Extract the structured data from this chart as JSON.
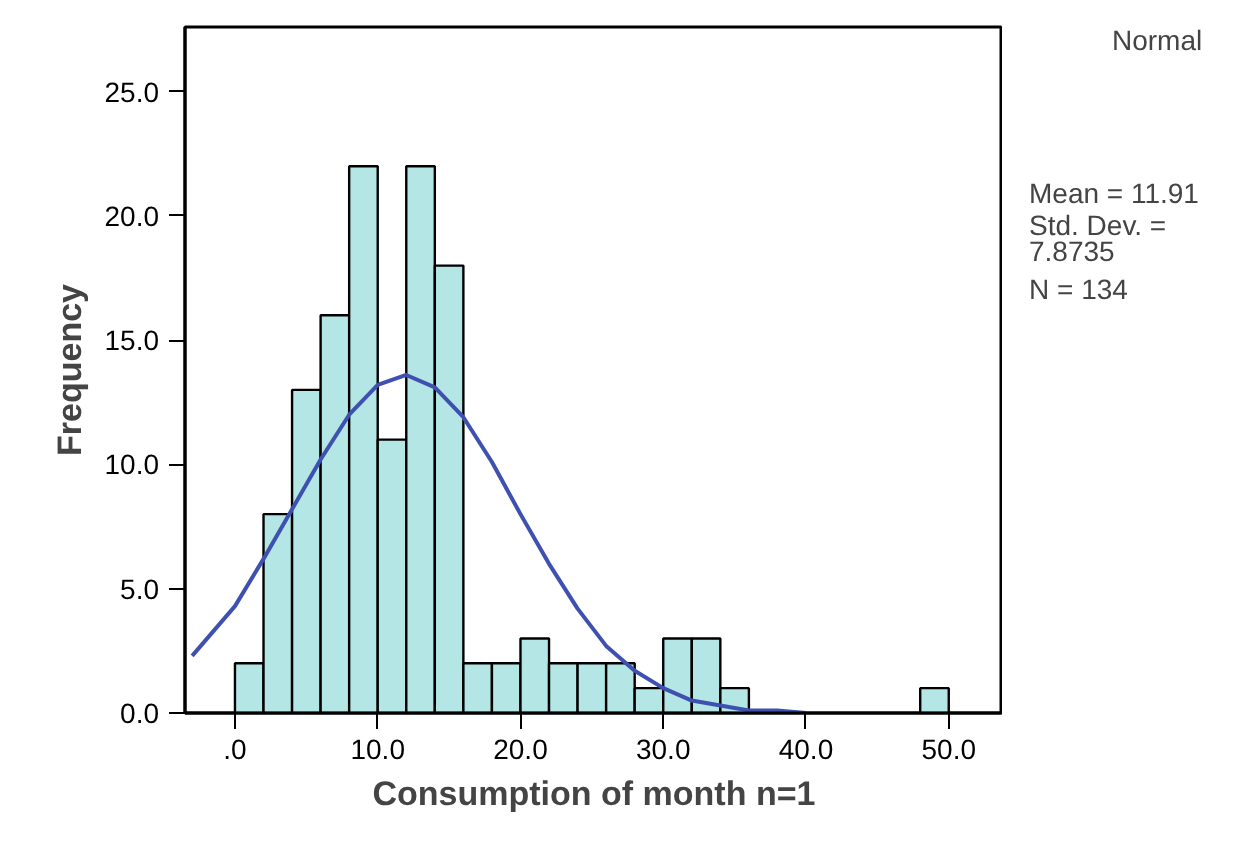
{
  "chart_data": {
    "type": "histogram",
    "xlabel": "Consumption of month n=1",
    "ylabel": "Frequency",
    "bins": [
      0,
      2,
      4,
      6,
      8,
      10,
      12,
      14,
      16,
      18,
      20,
      22,
      24,
      26,
      28,
      30,
      32,
      34,
      36,
      38,
      40,
      42,
      44,
      46,
      48,
      50
    ],
    "values": [
      2,
      8,
      13,
      16,
      22,
      11,
      22,
      18,
      2,
      2,
      3,
      2,
      2,
      2,
      1,
      3,
      3,
      1,
      0,
      0,
      0,
      0,
      0,
      0,
      1
    ],
    "color": "#b4e6e6",
    "series": [
      {
        "name": "Normal",
        "type": "line",
        "color": "#3f51b0",
        "x": [
          -3,
          0,
          2,
          4,
          6,
          8,
          10,
          12,
          14,
          16,
          18,
          20,
          22,
          24,
          26,
          28,
          30,
          32,
          34,
          36,
          38,
          40
        ],
        "values": [
          2.3,
          4.3,
          6.2,
          8.2,
          10.2,
          12.0,
          13.2,
          13.6,
          13.1,
          11.9,
          10.1,
          8.0,
          6.0,
          4.2,
          2.7,
          1.7,
          1.0,
          0.5,
          0.3,
          0.1,
          0.1,
          0.0
        ]
      }
    ],
    "xlim": [
      -3.5,
      53.8
    ],
    "ylim": [
      0,
      27.6
    ],
    "xticks": [
      {
        "value": 0,
        "label": ".0"
      },
      {
        "value": 10,
        "label": "10.0"
      },
      {
        "value": 20,
        "label": "20.0"
      },
      {
        "value": 30,
        "label": "30.0"
      },
      {
        "value": 40,
        "label": "40.0"
      },
      {
        "value": 50,
        "label": "50.0"
      }
    ],
    "yticks": [
      {
        "value": 0,
        "label": "0.0"
      },
      {
        "value": 5,
        "label": "5.0"
      },
      {
        "value": 10,
        "label": "10.0"
      },
      {
        "value": 15,
        "label": "15.0"
      },
      {
        "value": 20,
        "label": "20.0"
      },
      {
        "value": 25,
        "label": "25.0"
      }
    ],
    "legend": "top right",
    "grid": false,
    "annotations": [
      "Mean = 11.91",
      "Std. Dev. =",
      "7.8735",
      "N = 134"
    ]
  }
}
